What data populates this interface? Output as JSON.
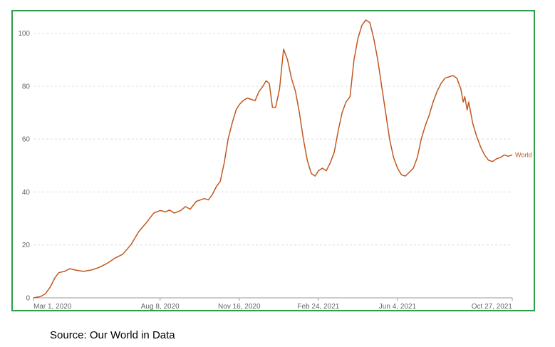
{
  "chart_data": {
    "type": "line",
    "title": "",
    "xlabel": "",
    "ylabel": "",
    "ylim": [
      0,
      105
    ],
    "yticks": [
      0,
      20,
      40,
      60,
      80,
      100
    ],
    "ytick_labels": [
      "0",
      "20",
      "40",
      "60",
      "80",
      "100"
    ],
    "xticks": [
      "2020-03-01",
      "2020-08-08",
      "2020-11-16",
      "2021-02-24",
      "2021-06-04",
      "2021-10-27"
    ],
    "xtick_labels": [
      "Mar 1, 2020",
      "Aug 8, 2020",
      "Nov 16, 2020",
      "Feb 24, 2021",
      "Jun 4, 2021",
      "Oct 27, 2021"
    ],
    "xlim": [
      "2020-03-01",
      "2021-10-27"
    ],
    "grid": true,
    "colors": {
      "line": "#c0581f",
      "frame": "#2e9e48",
      "grid": "#dddddd"
    },
    "series": [
      {
        "name": "World",
        "points": [
          [
            "2020-03-01",
            0
          ],
          [
            "2020-03-10",
            0.5
          ],
          [
            "2020-03-16",
            1.5
          ],
          [
            "2020-03-22",
            4
          ],
          [
            "2020-03-28",
            7.5
          ],
          [
            "2020-04-02",
            9.5
          ],
          [
            "2020-04-09",
            10
          ],
          [
            "2020-04-16",
            11
          ],
          [
            "2020-04-23",
            10.5
          ],
          [
            "2020-05-03",
            10
          ],
          [
            "2020-05-13",
            10.5
          ],
          [
            "2020-05-23",
            11.5
          ],
          [
            "2020-06-02",
            13
          ],
          [
            "2020-06-12",
            15
          ],
          [
            "2020-06-22",
            16.5
          ],
          [
            "2020-07-02",
            20
          ],
          [
            "2020-07-12",
            25
          ],
          [
            "2020-07-22",
            28.5
          ],
          [
            "2020-07-31",
            32
          ],
          [
            "2020-08-08",
            33
          ],
          [
            "2020-08-15",
            32.5
          ],
          [
            "2020-08-20",
            33.2
          ],
          [
            "2020-08-26",
            32
          ],
          [
            "2020-09-03",
            33
          ],
          [
            "2020-09-09",
            34.5
          ],
          [
            "2020-09-15",
            33.5
          ],
          [
            "2020-09-23",
            36.5
          ],
          [
            "2020-10-03",
            37.5
          ],
          [
            "2020-10-08",
            37
          ],
          [
            "2020-10-13",
            39
          ],
          [
            "2020-10-18",
            42
          ],
          [
            "2020-10-23",
            44
          ],
          [
            "2020-10-28",
            51
          ],
          [
            "2020-11-02",
            60
          ],
          [
            "2020-11-07",
            66
          ],
          [
            "2020-11-12",
            71
          ],
          [
            "2020-11-16",
            73
          ],
          [
            "2020-11-21",
            74.5
          ],
          [
            "2020-11-26",
            75.5
          ],
          [
            "2020-12-01",
            75
          ],
          [
            "2020-12-06",
            74.5
          ],
          [
            "2020-12-11",
            78
          ],
          [
            "2020-12-16",
            80
          ],
          [
            "2020-12-20",
            82
          ],
          [
            "2020-12-24",
            81
          ],
          [
            "2020-12-28",
            72
          ],
          [
            "2021-01-01",
            72
          ],
          [
            "2021-01-06",
            79
          ],
          [
            "2021-01-11",
            94
          ],
          [
            "2021-01-16",
            90
          ],
          [
            "2021-01-21",
            83
          ],
          [
            "2021-01-26",
            78
          ],
          [
            "2021-01-31",
            70
          ],
          [
            "2021-02-05",
            60
          ],
          [
            "2021-02-10",
            52
          ],
          [
            "2021-02-15",
            47
          ],
          [
            "2021-02-20",
            46
          ],
          [
            "2021-02-24",
            48
          ],
          [
            "2021-03-01",
            49
          ],
          [
            "2021-03-06",
            48
          ],
          [
            "2021-03-11",
            51
          ],
          [
            "2021-03-16",
            55
          ],
          [
            "2021-03-21",
            63
          ],
          [
            "2021-03-26",
            70
          ],
          [
            "2021-03-31",
            74
          ],
          [
            "2021-04-05",
            76
          ],
          [
            "2021-04-10",
            90
          ],
          [
            "2021-04-15",
            98
          ],
          [
            "2021-04-20",
            103
          ],
          [
            "2021-04-25",
            105
          ],
          [
            "2021-04-30",
            104
          ],
          [
            "2021-05-05",
            98
          ],
          [
            "2021-05-10",
            90
          ],
          [
            "2021-05-15",
            80
          ],
          [
            "2021-05-20",
            70
          ],
          [
            "2021-05-25",
            60
          ],
          [
            "2021-05-30",
            53
          ],
          [
            "2021-06-04",
            49
          ],
          [
            "2021-06-09",
            46.5
          ],
          [
            "2021-06-14",
            46
          ],
          [
            "2021-06-19",
            47.5
          ],
          [
            "2021-06-24",
            49
          ],
          [
            "2021-06-29",
            53
          ],
          [
            "2021-07-04",
            60
          ],
          [
            "2021-07-09",
            65
          ],
          [
            "2021-07-14",
            69
          ],
          [
            "2021-07-19",
            74
          ],
          [
            "2021-07-24",
            78
          ],
          [
            "2021-07-29",
            81
          ],
          [
            "2021-08-03",
            83
          ],
          [
            "2021-08-08",
            83.5
          ],
          [
            "2021-08-13",
            84
          ],
          [
            "2021-08-18",
            83
          ],
          [
            "2021-08-23",
            79
          ],
          [
            "2021-08-26",
            74
          ],
          [
            "2021-08-28",
            76
          ],
          [
            "2021-08-31",
            71
          ],
          [
            "2021-09-02",
            74
          ],
          [
            "2021-09-07",
            66
          ],
          [
            "2021-09-12",
            61
          ],
          [
            "2021-09-17",
            57
          ],
          [
            "2021-09-22",
            54
          ],
          [
            "2021-09-27",
            52
          ],
          [
            "2021-10-02",
            51.5
          ],
          [
            "2021-10-07",
            52.5
          ],
          [
            "2021-10-12",
            53
          ],
          [
            "2021-10-17",
            54
          ],
          [
            "2021-10-22",
            53.5
          ],
          [
            "2021-10-27",
            54
          ]
        ]
      }
    ]
  },
  "source": {
    "text": "Source: Our World in Data"
  }
}
